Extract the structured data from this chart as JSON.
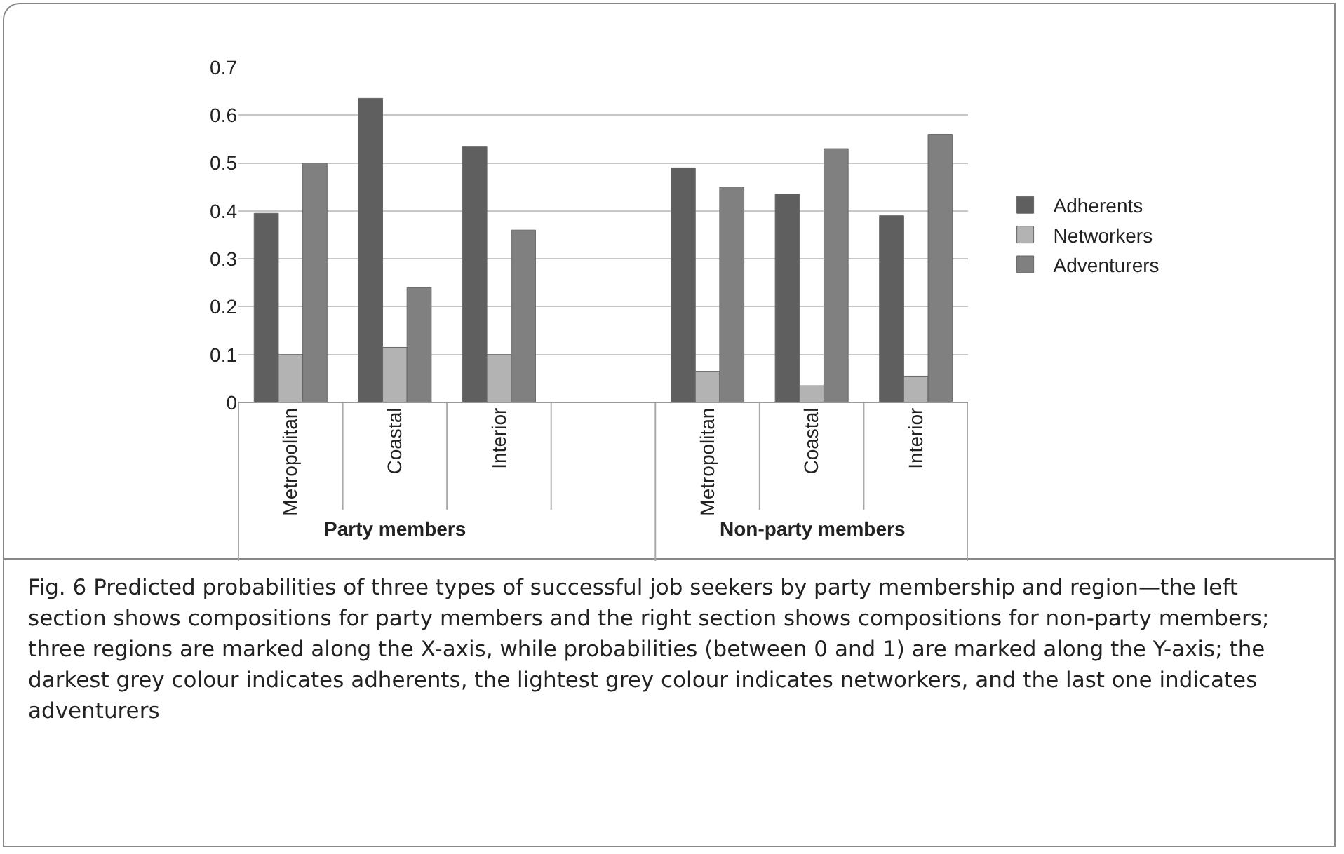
{
  "chart_data": {
    "type": "bar",
    "categories": [
      "Metropolitan",
      "Coastal",
      "Interior",
      null,
      "Metropolitan",
      "Coastal",
      "Interior"
    ],
    "series": [
      {
        "name": "Adherents",
        "color": "#5f5f5f",
        "values": [
          0.395,
          0.635,
          0.535,
          null,
          0.49,
          0.435,
          0.39
        ]
      },
      {
        "name": "Networkers",
        "color": "#b3b3b3",
        "values": [
          0.1,
          0.115,
          0.1,
          null,
          0.065,
          0.035,
          0.055
        ]
      },
      {
        "name": "Adventurers",
        "color": "#808080",
        "values": [
          0.5,
          0.24,
          0.36,
          null,
          0.45,
          0.53,
          0.56
        ]
      }
    ],
    "ylim": [
      0,
      0.7
    ],
    "yticks": [
      0,
      0.1,
      0.2,
      0.3,
      0.4,
      0.5,
      0.6,
      0.7
    ],
    "grid": "y",
    "legend": "right",
    "annotations": [
      "Party members",
      "Non-party members",
      "Fig. 6 Predicted probabilities of three types of successful job seekers by party membership and region—the left section shows compositions for party members and the right section shows compositions for non-party members; three regions are marked along the X-axis, while probabilities (between 0 and 1) are marked along the Y-axis; the darkest grey colour indicates adherents, the lightest grey colour indicates networkers, and the last one indicates adventurers"
    ]
  }
}
